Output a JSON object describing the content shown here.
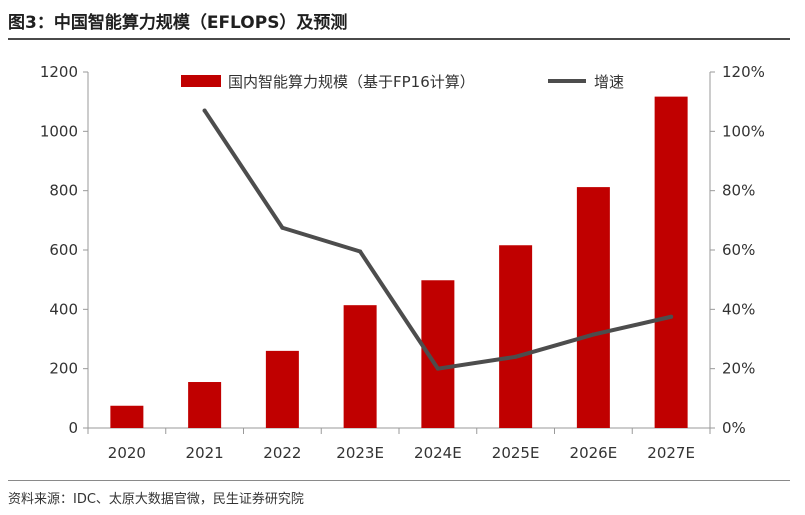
{
  "title": "图3：中国智能算力规模（EFLOPS）及预测",
  "source": "资料来源：IDC、太原大数据官微，民生证券研究院",
  "colors": {
    "bar": "#c00000",
    "line": "#4d4d4d",
    "axis": "#9a9a9a",
    "text": "#333333"
  },
  "chart_data": {
    "type": "bar",
    "categories": [
      "2020",
      "2021",
      "2022",
      "2023E",
      "2024E",
      "2025E",
      "2026E",
      "2027E"
    ],
    "series": [
      {
        "name": "国内智能算力规模（基于FP16计算）",
        "type": "bar",
        "axis": "left",
        "values": [
          75,
          155,
          260,
          414,
          498,
          616,
          812,
          1117
        ]
      },
      {
        "name": "增速",
        "type": "line",
        "axis": "right",
        "values": [
          null,
          1.07,
          0.675,
          0.595,
          0.2,
          0.24,
          0.315,
          0.375
        ]
      }
    ],
    "y_left": {
      "ylim": [
        0,
        1200
      ],
      "ticks": [
        "0",
        "200",
        "400",
        "600",
        "800",
        "1000",
        "1200"
      ]
    },
    "y_right": {
      "ylim": [
        0,
        1.2
      ],
      "ticks": [
        "0%",
        "20%",
        "40%",
        "60%",
        "80%",
        "100%",
        "120%"
      ]
    },
    "grid": false,
    "legend": "top"
  }
}
